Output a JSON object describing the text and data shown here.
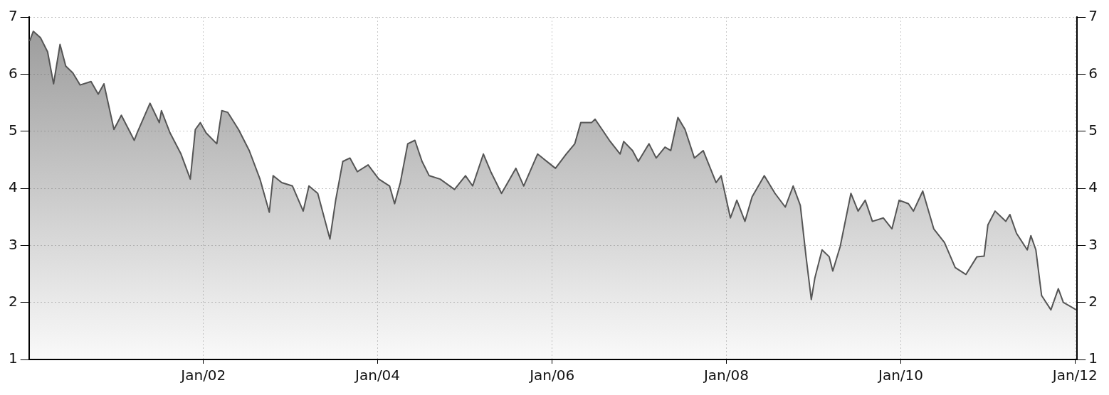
{
  "chart_data": {
    "type": "area",
    "legend": false,
    "grid": true,
    "marker": "none",
    "line_style": "solid",
    "xlim": [
      "2000-01-01",
      "2012-01-10"
    ],
    "xticks": [
      {
        "value": "2002-01",
        "label": "Jan/02"
      },
      {
        "value": "2004-01",
        "label": "Jan/04"
      },
      {
        "value": "2006-01",
        "label": "Jan/06"
      },
      {
        "value": "2008-01",
        "label": "Jan/08"
      },
      {
        "value": "2010-01",
        "label": "Jan/10"
      },
      {
        "value": "2012-01",
        "label": "Jan/12"
      }
    ],
    "ylim": [
      1,
      7
    ],
    "yticks": [
      1,
      2,
      3,
      4,
      5,
      6,
      7
    ],
    "y2lim": [
      1,
      7
    ],
    "y2ticks": [
      1,
      2,
      3,
      4,
      5,
      6,
      7
    ],
    "x": [
      "2000-01-04",
      "2000-01-19",
      "2000-02-18",
      "2000-03-19",
      "2000-04-13",
      "2000-05-10",
      "2000-06-03",
      "2000-07-03",
      "2000-08-02",
      "2000-09-17",
      "2000-10-17",
      "2000-11-10",
      "2000-12-22",
      "2001-01-22",
      "2001-03-17",
      "2001-03-29",
      "2001-05-22",
      "2001-06-30",
      "2001-07-09",
      "2001-08-14",
      "2001-09-29",
      "2001-11-07",
      "2001-11-28",
      "2001-12-19",
      "2002-01-12",
      "2002-02-26",
      "2002-03-19",
      "2002-04-13",
      "2002-05-28",
      "2002-07-12",
      "2002-08-26",
      "2002-10-04",
      "2002-10-20",
      "2002-11-25",
      "2003-01-09",
      "2003-02-23",
      "2003-03-19",
      "2003-04-25",
      "2003-06-15",
      "2003-07-09",
      "2003-08-08",
      "2003-09-07",
      "2003-10-08",
      "2003-11-22",
      "2004-01-06",
      "2004-02-20",
      "2004-03-12",
      "2004-04-05",
      "2004-05-06",
      "2004-06-05",
      "2004-07-05",
      "2004-08-04",
      "2004-09-19",
      "2004-11-18",
      "2005-01-03",
      "2005-02-02",
      "2005-03-19",
      "2005-04-19",
      "2005-06-03",
      "2005-06-21",
      "2005-08-02",
      "2005-09-04",
      "2005-11-01",
      "2005-12-16",
      "2006-01-15",
      "2006-03-01",
      "2006-04-06",
      "2006-05-01",
      "2006-06-15",
      "2006-06-30",
      "2006-08-29",
      "2006-10-13",
      "2006-10-28",
      "2006-12-04",
      "2006-12-28",
      "2007-02-11",
      "2007-03-13",
      "2007-04-19",
      "2007-05-13",
      "2007-06-12",
      "2007-07-12",
      "2007-08-20",
      "2007-09-26",
      "2007-11-19",
      "2007-12-10",
      "2008-01-18",
      "2008-02-14",
      "2008-03-19",
      "2008-04-18",
      "2008-06-08",
      "2008-07-23",
      "2008-09-04",
      "2008-10-07",
      "2008-11-06",
      "2008-11-30",
      "2008-12-22",
      "2009-01-06",
      "2009-02-05",
      "2009-03-07",
      "2009-03-22",
      "2009-04-22",
      "2009-06-06",
      "2009-07-06",
      "2009-08-05",
      "2009-09-04",
      "2009-10-20",
      "2009-11-25",
      "2009-12-25",
      "2010-02-02",
      "2010-02-23",
      "2010-04-03",
      "2010-05-19",
      "2010-07-03",
      "2010-08-17",
      "2010-10-01",
      "2010-11-16",
      "2010-12-16",
      "2011-01-01",
      "2011-01-31",
      "2011-03-17",
      "2011-04-03",
      "2011-05-01",
      "2011-06-15",
      "2011-06-30",
      "2011-07-21",
      "2011-08-14",
      "2011-09-22",
      "2011-10-23",
      "2011-11-13",
      "2011-12-13",
      "2012-01-06"
    ],
    "series": [
      {
        "color": "#555555",
        "values": [
          6.58,
          6.75,
          6.64,
          6.39,
          5.83,
          6.52,
          6.14,
          6.02,
          5.81,
          5.87,
          5.65,
          5.83,
          5.03,
          5.28,
          4.84,
          4.97,
          5.49,
          5.15,
          5.36,
          4.97,
          4.6,
          4.16,
          5.03,
          5.15,
          4.97,
          4.78,
          5.36,
          5.33,
          5.03,
          4.66,
          4.16,
          3.58,
          4.22,
          4.1,
          4.04,
          3.6,
          4.04,
          3.91,
          3.11,
          3.79,
          4.47,
          4.53,
          4.29,
          4.41,
          4.16,
          4.04,
          3.73,
          4.1,
          4.78,
          4.84,
          4.47,
          4.22,
          4.16,
          3.98,
          4.22,
          4.04,
          4.6,
          4.29,
          3.91,
          4.04,
          4.35,
          4.04,
          4.6,
          4.45,
          4.35,
          4.6,
          4.78,
          5.15,
          5.15,
          5.21,
          4.84,
          4.6,
          4.82,
          4.66,
          4.47,
          4.78,
          4.53,
          4.72,
          4.66,
          5.24,
          5.03,
          4.53,
          4.66,
          4.1,
          4.22,
          3.48,
          3.79,
          3.42,
          3.85,
          4.22,
          3.91,
          3.67,
          4.04,
          3.7,
          2.8,
          2.05,
          2.43,
          2.92,
          2.8,
          2.55,
          2.98,
          3.91,
          3.6,
          3.79,
          3.42,
          3.48,
          3.29,
          3.79,
          3.73,
          3.6,
          3.95,
          3.29,
          3.05,
          2.61,
          2.49,
          2.8,
          2.81,
          3.36,
          3.6,
          3.42,
          3.54,
          3.21,
          2.92,
          3.17,
          2.92,
          2.12,
          1.87,
          2.24,
          2,
          1.93,
          1.87
        ]
      }
    ]
  }
}
